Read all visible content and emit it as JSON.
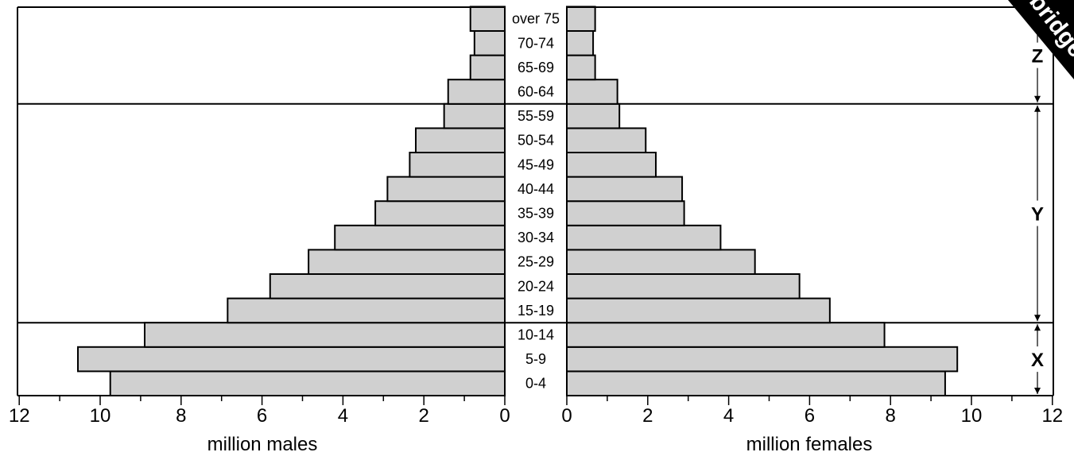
{
  "chart_data": {
    "type": "bar",
    "categories": [
      "0-4",
      "5-9",
      "10-14",
      "15-19",
      "20-24",
      "25-29",
      "30-34",
      "35-39",
      "40-44",
      "45-49",
      "50-54",
      "55-59",
      "60-64",
      "65-69",
      "70-74",
      "over 75"
    ],
    "series": [
      {
        "name": "million males",
        "values": [
          9.75,
          10.55,
          8.9,
          6.85,
          5.8,
          4.85,
          4.2,
          3.2,
          2.9,
          2.35,
          2.2,
          1.5,
          1.4,
          0.85,
          0.75,
          0.85
        ]
      },
      {
        "name": "million females",
        "values": [
          9.35,
          9.65,
          7.85,
          6.5,
          5.75,
          4.65,
          3.8,
          2.9,
          2.85,
          2.2,
          1.95,
          1.3,
          1.25,
          0.7,
          0.65,
          0.7
        ]
      }
    ],
    "xlabel_left": "million males",
    "xlabel_right": "million females",
    "xlim": [
      0,
      12
    ],
    "x_ticks_left": [
      "12",
      "10",
      "8",
      "6",
      "4",
      "2",
      "0"
    ],
    "x_ticks_right": [
      "0",
      "2",
      "4",
      "6",
      "8",
      "10",
      "12"
    ],
    "bands": [
      {
        "label": "X",
        "from": "0-4",
        "to": "10-14"
      },
      {
        "label": "Y",
        "from": "15-19",
        "to": "55-59"
      },
      {
        "label": "Z",
        "from": "60-64",
        "to": "over 75"
      }
    ],
    "colors": {
      "bar_fill": "#d0d0d0",
      "bar_stroke": "#000000",
      "watermark_fill": "#000000"
    }
  },
  "watermark": {
    "text": "bridge"
  }
}
